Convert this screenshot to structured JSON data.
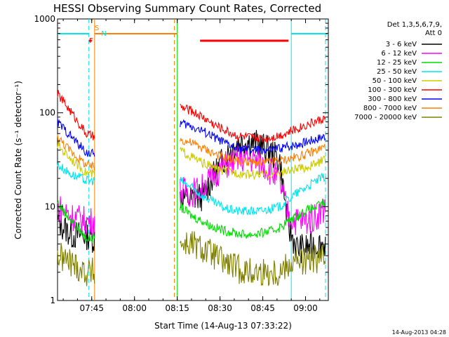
{
  "chart_data": {
    "type": "line",
    "title": "HESSI Observing Summary Count Rates, Corrected",
    "xlabel": "Start Time (14-Aug-13 07:33:22)",
    "ylabel": "Corrected Count Rate (s⁻¹ detector⁻¹)",
    "yscale": "log",
    "ylim": [
      1,
      1000
    ],
    "xlim": [
      "07:33",
      "09:08"
    ],
    "xticks": [
      "07:45",
      "08:00",
      "08:15",
      "08:30",
      "08:45",
      "09:00"
    ],
    "yticks": [
      "1",
      "10",
      "100",
      "1000"
    ],
    "grid": false,
    "legend_position": "right",
    "legend_header": [
      "Det 1,3,5,6,7,9,",
      "Att 0"
    ],
    "timestamp": "14-Aug-2013 04:28",
    "gaps": [
      [
        "07:46",
        "08:16"
      ]
    ],
    "series": [
      {
        "name": "3 - 6 keV",
        "color": "#000000",
        "points": [
          [
            "07:33",
            7
          ],
          [
            "07:38",
            5
          ],
          [
            "07:43",
            5
          ],
          [
            "07:46",
            4.5
          ],
          [
            "08:16",
            13
          ],
          [
            "08:20",
            12
          ],
          [
            "08:24",
            13
          ],
          [
            "08:28",
            22
          ],
          [
            "08:32",
            35
          ],
          [
            "08:36",
            48
          ],
          [
            "08:40",
            50
          ],
          [
            "08:44",
            45
          ],
          [
            "08:48",
            38
          ],
          [
            "08:51",
            30
          ],
          [
            "08:54",
            6
          ],
          [
            "08:57",
            3.6
          ],
          [
            "09:00",
            3.6
          ],
          [
            "09:04",
            4
          ],
          [
            "09:07",
            4
          ]
        ]
      },
      {
        "name": "6 - 12 keV",
        "color": "#ff00ff",
        "points": [
          [
            "07:33",
            10
          ],
          [
            "07:38",
            8
          ],
          [
            "07:43",
            7
          ],
          [
            "07:46",
            7
          ],
          [
            "08:16",
            15
          ],
          [
            "08:20",
            14
          ],
          [
            "08:24",
            16
          ],
          [
            "08:28",
            22
          ],
          [
            "08:32",
            28
          ],
          [
            "08:36",
            32
          ],
          [
            "08:40",
            33
          ],
          [
            "08:44",
            30
          ],
          [
            "08:48",
            24
          ],
          [
            "08:51",
            18
          ],
          [
            "08:54",
            8
          ],
          [
            "08:57",
            7
          ],
          [
            "09:00",
            7
          ],
          [
            "09:04",
            8
          ],
          [
            "09:07",
            10
          ]
        ]
      },
      {
        "name": "12 - 25 keV",
        "color": "#00dd00",
        "points": [
          [
            "07:33",
            11
          ],
          [
            "07:38",
            7
          ],
          [
            "07:43",
            4.7
          ],
          [
            "07:46",
            4.5
          ],
          [
            "08:16",
            10
          ],
          [
            "08:20",
            8
          ],
          [
            "08:24",
            7
          ],
          [
            "08:28",
            6
          ],
          [
            "08:32",
            5.5
          ],
          [
            "08:36",
            5.2
          ],
          [
            "08:40",
            5
          ],
          [
            "08:44",
            5.2
          ],
          [
            "08:48",
            5.5
          ],
          [
            "08:51",
            6
          ],
          [
            "08:54",
            7
          ],
          [
            "08:57",
            8
          ],
          [
            "09:00",
            9
          ],
          [
            "09:04",
            10
          ],
          [
            "09:07",
            11
          ]
        ]
      },
      {
        "name": "25 - 50 keV",
        "color": "#00e5ee",
        "points": [
          [
            "07:33",
            28
          ],
          [
            "07:38",
            22
          ],
          [
            "07:43",
            19
          ],
          [
            "07:46",
            19
          ],
          [
            "08:16",
            19
          ],
          [
            "08:20",
            16
          ],
          [
            "08:24",
            13
          ],
          [
            "08:28",
            11
          ],
          [
            "08:32",
            9.5
          ],
          [
            "08:36",
            9
          ],
          [
            "08:40",
            9
          ],
          [
            "08:44",
            9
          ],
          [
            "08:48",
            9.5
          ],
          [
            "08:51",
            10
          ],
          [
            "08:54",
            12
          ],
          [
            "08:57",
            14
          ],
          [
            "09:00",
            16
          ],
          [
            "09:04",
            19
          ],
          [
            "09:07",
            21
          ]
        ]
      },
      {
        "name": "50 - 100 keV",
        "color": "#cccc00",
        "points": [
          [
            "07:33",
            45
          ],
          [
            "07:38",
            32
          ],
          [
            "07:43",
            23
          ],
          [
            "07:46",
            22
          ],
          [
            "08:16",
            40
          ],
          [
            "08:20",
            34
          ],
          [
            "08:24",
            29
          ],
          [
            "08:28",
            26
          ],
          [
            "08:32",
            24
          ],
          [
            "08:36",
            23
          ],
          [
            "08:40",
            22
          ],
          [
            "08:44",
            22
          ],
          [
            "08:48",
            22
          ],
          [
            "08:51",
            23
          ],
          [
            "08:54",
            24
          ],
          [
            "08:57",
            25
          ],
          [
            "09:00",
            26
          ],
          [
            "09:04",
            29
          ],
          [
            "09:07",
            32
          ]
        ]
      },
      {
        "name": "100 - 300 keV",
        "color": "#ff0000",
        "points": [
          [
            "07:33",
            160
          ],
          [
            "07:38",
            100
          ],
          [
            "07:43",
            60
          ],
          [
            "07:46",
            55
          ],
          [
            "08:16",
            115
          ],
          [
            "08:20",
            105
          ],
          [
            "08:24",
            90
          ],
          [
            "08:28",
            75
          ],
          [
            "08:32",
            65
          ],
          [
            "08:36",
            57
          ],
          [
            "08:40",
            55
          ],
          [
            "08:44",
            53
          ],
          [
            "08:48",
            55
          ],
          [
            "08:51",
            58
          ],
          [
            "08:54",
            62
          ],
          [
            "08:57",
            68
          ],
          [
            "09:00",
            74
          ],
          [
            "09:04",
            82
          ],
          [
            "09:07",
            88
          ]
        ]
      },
      {
        "name": "300 - 800 keV",
        "color": "#0000ff",
        "points": [
          [
            "07:33",
            80
          ],
          [
            "07:38",
            55
          ],
          [
            "07:43",
            38
          ],
          [
            "07:46",
            36
          ],
          [
            "08:16",
            78
          ],
          [
            "08:20",
            72
          ],
          [
            "08:24",
            64
          ],
          [
            "08:28",
            55
          ],
          [
            "08:32",
            47
          ],
          [
            "08:36",
            42
          ],
          [
            "08:40",
            40
          ],
          [
            "08:44",
            40
          ],
          [
            "08:48",
            40
          ],
          [
            "08:51",
            42
          ],
          [
            "08:54",
            44
          ],
          [
            "08:57",
            46
          ],
          [
            "09:00",
            49
          ],
          [
            "09:04",
            53
          ],
          [
            "09:07",
            57
          ]
        ]
      },
      {
        "name": "800 - 7000 keV",
        "color": "#ff7f00",
        "points": [
          [
            "07:33",
            55
          ],
          [
            "07:38",
            38
          ],
          [
            "07:43",
            28
          ],
          [
            "07:46",
            26
          ],
          [
            "08:16",
            52
          ],
          [
            "08:20",
            48
          ],
          [
            "08:24",
            42
          ],
          [
            "08:28",
            37
          ],
          [
            "08:32",
            33
          ],
          [
            "08:36",
            31
          ],
          [
            "08:40",
            30
          ],
          [
            "08:44",
            29
          ],
          [
            "08:48",
            30
          ],
          [
            "08:51",
            31
          ],
          [
            "08:54",
            32
          ],
          [
            "08:57",
            34
          ],
          [
            "09:00",
            36
          ],
          [
            "09:04",
            40
          ],
          [
            "09:07",
            44
          ]
        ]
      },
      {
        "name": "7000 - 20000 keV",
        "color": "#808000",
        "points": [
          [
            "07:33",
            3
          ],
          [
            "07:38",
            2.5
          ],
          [
            "07:43",
            2
          ],
          [
            "07:46",
            2
          ],
          [
            "08:16",
            4
          ],
          [
            "08:20",
            4
          ],
          [
            "08:24",
            3.5
          ],
          [
            "08:28",
            3
          ],
          [
            "08:32",
            2.5
          ],
          [
            "08:36",
            2.2
          ],
          [
            "08:40",
            2
          ],
          [
            "08:44",
            2
          ],
          [
            "08:48",
            2
          ],
          [
            "08:51",
            2
          ],
          [
            "08:54",
            2.5
          ],
          [
            "08:57",
            2.6
          ],
          [
            "09:00",
            2.6
          ],
          [
            "09:04",
            2.8
          ],
          [
            "09:07",
            2.8
          ]
        ]
      }
    ],
    "flags": [
      {
        "label": "S",
        "color": "#ff7f00",
        "start": "07:46",
        "end": "08:15",
        "level": "top"
      },
      {
        "label": "N",
        "color": "#00e5ee",
        "start": "07:33",
        "end": "07:44",
        "level": "top"
      },
      {
        "label": "",
        "color": "#00e5ee",
        "start": "08:55",
        "end": "09:08",
        "level": "top"
      },
      {
        "label": "F",
        "color": "#ff0000",
        "start": "07:44",
        "end": "07:45",
        "level": "second"
      },
      {
        "label": "",
        "color": "#ff0000",
        "start": "08:23",
        "end": "08:54",
        "level": "second"
      }
    ],
    "markers": [
      {
        "color": "#00e5ee",
        "time": "07:44",
        "style": "dashed"
      },
      {
        "color": "#ff7f00",
        "time": "07:46",
        "style": "solid"
      },
      {
        "color": "#ff7f00",
        "time": "08:14",
        "style": "dashed"
      },
      {
        "color": "#00dd00",
        "time": "08:15",
        "style": "solid"
      },
      {
        "color": "#00e5ee",
        "time": "08:55",
        "style": "solid"
      },
      {
        "color": "#00e5ee",
        "time": "09:07",
        "style": "dashed"
      }
    ]
  }
}
